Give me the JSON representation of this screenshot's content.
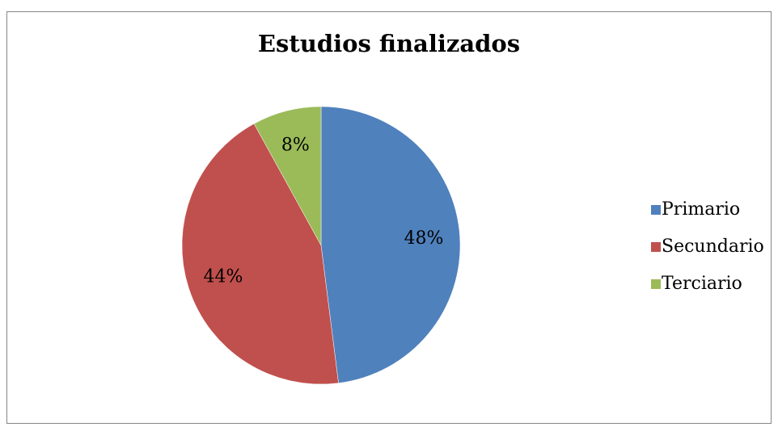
{
  "chart_data": {
    "type": "pie",
    "title": "Estudios finalizados",
    "categories": [
      "Primario",
      "Secundario",
      "Terciario"
    ],
    "values": [
      48,
      44,
      8
    ],
    "value_labels": [
      "48%",
      "44%",
      "8%"
    ],
    "colors": [
      "#4f81bd",
      "#c0504d",
      "#9bbb59"
    ],
    "legend": "right"
  }
}
